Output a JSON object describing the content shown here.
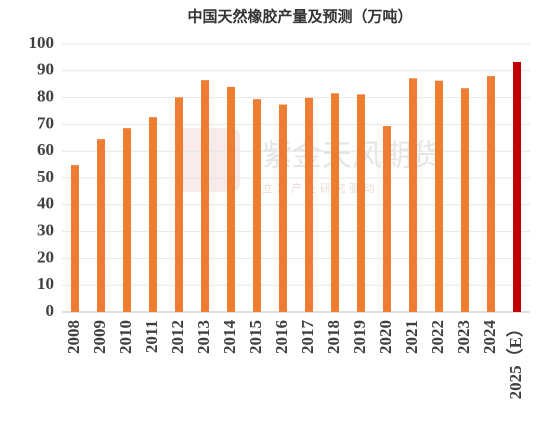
{
  "chart_data": {
    "type": "bar",
    "title": "中国天然橡胶产量及预测（万吨）",
    "watermark": "紫金天风期货",
    "watermark_subtitle": "立 足 产 业 研 究 驱 动",
    "categories": [
      "2008",
      "2009",
      "2010",
      "2011",
      "2012",
      "2013",
      "2014",
      "2015",
      "2016",
      "2017",
      "2018",
      "2019",
      "2020",
      "2021",
      "2022",
      "2023",
      "2024",
      "2025（E）"
    ],
    "values": [
      54.8,
      64.5,
      68.6,
      72.7,
      80.1,
      86.5,
      84.0,
      79.4,
      77.4,
      79.9,
      81.6,
      81.2,
      69.4,
      87.2,
      86.3,
      83.5,
      88.0,
      93.3
    ],
    "colors": [
      "#ed7d31",
      "#ed7d31",
      "#ed7d31",
      "#ed7d31",
      "#ed7d31",
      "#ed7d31",
      "#ed7d31",
      "#ed7d31",
      "#ed7d31",
      "#ed7d31",
      "#ed7d31",
      "#ed7d31",
      "#ed7d31",
      "#ed7d31",
      "#ed7d31",
      "#ed7d31",
      "#ed7d31",
      "#c00000"
    ],
    "ylim": [
      0,
      100
    ],
    "yticks": [
      0,
      10,
      20,
      30,
      40,
      50,
      60,
      70,
      80,
      90,
      100
    ],
    "grid": true
  }
}
